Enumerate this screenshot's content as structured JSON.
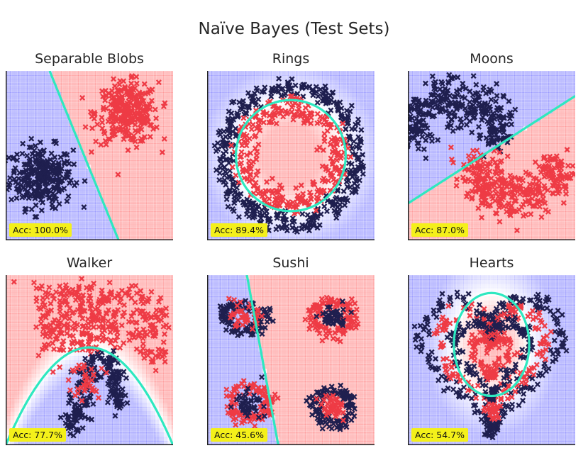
{
  "figure": {
    "title": "Naïve Bayes (Test Sets)"
  },
  "colors": {
    "class0": "#1f1f4f",
    "class1": "#ee3b45",
    "region0": "#6a6aff",
    "region1": "#ff6a6a",
    "boundary": "#2ee8c0",
    "acc_badge": "#f4f01a"
  },
  "chart_data": [
    {
      "type": "scatter",
      "title": "Separable Blobs",
      "accuracy": "Acc: 100.0%",
      "xlim": [
        -4,
        4
      ],
      "ylim": [
        -4,
        4
      ],
      "marker": "x-icon",
      "series": [
        {
          "class": 0,
          "center": [
            -2.3,
            -1.0
          ],
          "spread": 1.0
        },
        {
          "class": 1,
          "center": [
            1.8,
            2.0
          ],
          "spread": 1.0
        }
      ],
      "boundary": {
        "kind": "line",
        "points": [
          [
            -1.9,
            4.0
          ],
          [
            1.4,
            -4.0
          ]
        ]
      }
    },
    {
      "type": "scatter",
      "title": "Rings",
      "accuracy": "Acc: 89.4%",
      "xlim": [
        -1.25,
        1.25
      ],
      "ylim": [
        -1.25,
        1.25
      ],
      "marker": "x-icon",
      "series": [
        {
          "class": 0,
          "ring_radius": 1.0,
          "spread": 0.08
        },
        {
          "class": 1,
          "ring_radius": 0.7,
          "spread": 0.09
        }
      ],
      "boundary": {
        "kind": "ellipse",
        "center": [
          0,
          0
        ],
        "radii": [
          0.82,
          0.82
        ]
      }
    },
    {
      "type": "scatter",
      "title": "Moons",
      "accuracy": "Acc: 87.0%",
      "xlim": [
        -1.3,
        2.3
      ],
      "ylim": [
        -0.9,
        1.4
      ],
      "marker": "x-icon",
      "series": [
        {
          "class": 0,
          "shape": "upper-moon"
        },
        {
          "class": 1,
          "shape": "lower-moon"
        }
      ],
      "boundary": {
        "kind": "line",
        "points": [
          [
            -1.3,
            -0.4
          ],
          [
            2.3,
            1.06
          ]
        ]
      }
    },
    {
      "type": "scatter",
      "title": "Walker",
      "accuracy": "Acc: 77.7%",
      "xlim": [
        0,
        10
      ],
      "ylim": [
        0,
        10
      ],
      "marker": "x-icon",
      "series": [
        {
          "class": 0,
          "shape": "legs"
        },
        {
          "class": 1,
          "shape": "body"
        }
      ],
      "boundary": {
        "kind": "parabola",
        "vertex": [
          5.0,
          5.75
        ],
        "a": -0.23
      }
    },
    {
      "type": "scatter",
      "title": "Sushi",
      "accuracy": "Acc: 45.6%",
      "xlim": [
        -2,
        2
      ],
      "ylim": [
        -2,
        2
      ],
      "marker": "x-icon",
      "series": [
        {
          "class": 0,
          "shape": "rolls-a"
        },
        {
          "class": 1,
          "shape": "rolls-b"
        }
      ],
      "boundary": {
        "kind": "line",
        "points": [
          [
            -1.05,
            2.0
          ],
          [
            -0.3,
            -2.0
          ]
        ]
      }
    },
    {
      "type": "scatter",
      "title": "Hearts",
      "accuracy": "Acc: 54.7%",
      "xlim": [
        -2,
        2
      ],
      "ylim": [
        -2.2,
        1.6
      ],
      "marker": "x-icon",
      "series": [
        {
          "class": 0,
          "shape": "heart-outer-and-middle"
        },
        {
          "class": 1,
          "shape": "heart-between"
        }
      ],
      "boundary": {
        "kind": "ellipse",
        "center": [
          0,
          0.05
        ],
        "radii": [
          0.9,
          1.15
        ]
      }
    }
  ]
}
